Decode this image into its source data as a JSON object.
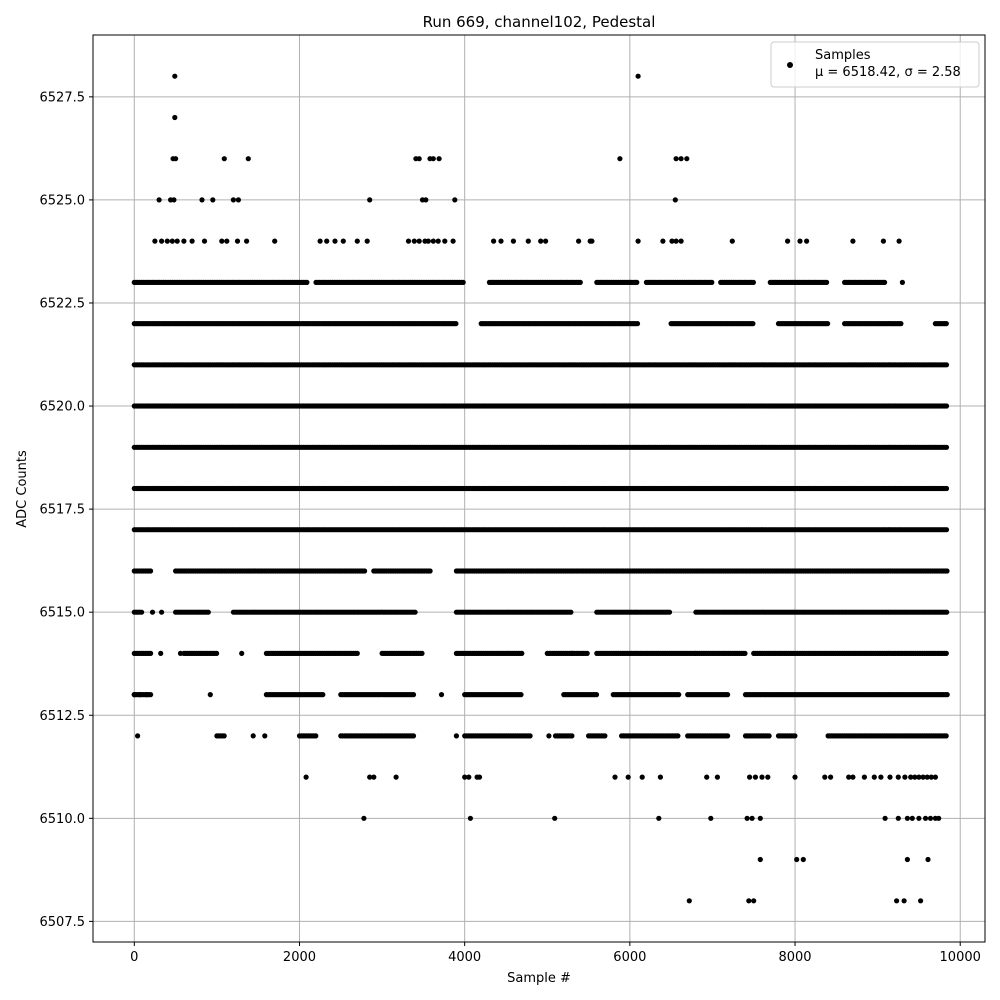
{
  "chart_data": {
    "type": "scatter",
    "title": "Run 669, channel102, Pedestal",
    "xlabel": "Sample #",
    "ylabel": "ADC Counts",
    "xlim": [
      -500,
      10300
    ],
    "ylim": [
      6507.0,
      6529.0
    ],
    "xticks": [
      0,
      2000,
      4000,
      6000,
      8000,
      10000
    ],
    "yticks": [
      6507.5,
      6510.0,
      6512.5,
      6515.0,
      6517.5,
      6520.0,
      6522.5,
      6525.0,
      6527.5
    ],
    "ytick_labels": [
      "6507.5",
      "6510.0",
      "6512.5",
      "6515.0",
      "6517.5",
      "6520.0",
      "6522.5",
      "6525.0",
      "6527.5"
    ],
    "grid": true,
    "legend_position": "top-right",
    "marker_color": "#000000",
    "series": [
      {
        "name": "Samples",
        "stats_label": "μ = 6518.42, σ = 2.58",
        "levels": [
          {
            "y": 6517,
            "ranges": [
              [
                0,
                9850
              ]
            ]
          },
          {
            "y": 6518,
            "ranges": [
              [
                0,
                9850
              ]
            ]
          },
          {
            "y": 6519,
            "ranges": [
              [
                0,
                9850
              ]
            ]
          },
          {
            "y": 6520,
            "ranges": [
              [
                0,
                9850
              ]
            ]
          },
          {
            "y": 6521,
            "ranges": [
              [
                0,
                9850
              ]
            ]
          },
          {
            "y": 6522,
            "ranges": [
              [
                0,
                3900
              ],
              [
                4200,
                6100
              ],
              [
                6500,
                7500
              ],
              [
                7800,
                8400
              ],
              [
                8600,
                9300
              ],
              [
                9700,
                9850
              ]
            ]
          },
          {
            "y": 6523,
            "ranges": [
              [
                0,
                2100
              ],
              [
                2200,
                4000
              ],
              [
                4300,
                5400
              ],
              [
                5600,
                6100
              ],
              [
                6200,
                7000
              ],
              [
                7100,
                7500
              ],
              [
                7700,
                8400
              ],
              [
                8600,
                9100
              ]
            ]
          },
          {
            "y": 6516,
            "ranges": [
              [
                0,
                200
              ],
              [
                500,
                2800
              ],
              [
                2900,
                3600
              ],
              [
                3900,
                9850
              ]
            ]
          },
          {
            "y": 6515,
            "ranges": [
              [
                0,
                100
              ],
              [
                500,
                900
              ],
              [
                1200,
                3400
              ],
              [
                3900,
                5300
              ],
              [
                5600,
                6500
              ],
              [
                6800,
                9850
              ]
            ]
          },
          {
            "y": 6514,
            "ranges": [
              [
                0,
                200
              ],
              [
                600,
                1000
              ],
              [
                1600,
                2700
              ],
              [
                3000,
                3500
              ],
              [
                3900,
                4700
              ],
              [
                5000,
                5500
              ],
              [
                5600,
                6800
              ],
              [
                6800,
                7400
              ],
              [
                7500,
                9850
              ]
            ]
          },
          {
            "y": 6513,
            "ranges": [
              [
                0,
                200
              ],
              [
                1600,
                2300
              ],
              [
                2500,
                3400
              ],
              [
                4000,
                4700
              ],
              [
                5200,
                5600
              ],
              [
                5800,
                6600
              ],
              [
                6700,
                7200
              ],
              [
                7400,
                9850
              ]
            ]
          },
          {
            "y": 6512,
            "ranges": [
              [
                1000,
                1100
              ],
              [
                2000,
                2200
              ],
              [
                2500,
                3400
              ],
              [
                4000,
                4800
              ],
              [
                5100,
                5300
              ],
              [
                5500,
                5700
              ],
              [
                5900,
                6600
              ],
              [
                6700,
                7200
              ],
              [
                7400,
                7700
              ],
              [
                7800,
                8000
              ],
              [
                8400,
                9850
              ]
            ]
          }
        ],
        "points": [
          [
            40,
            6512
          ],
          [
            1440,
            6512
          ],
          [
            1580,
            6512
          ],
          [
            3900,
            6512
          ],
          [
            5020,
            6512
          ],
          [
            0,
            6513
          ],
          [
            70,
            6513
          ],
          [
            150,
            6513
          ],
          [
            920,
            6513
          ],
          [
            3720,
            6513
          ],
          [
            320,
            6514
          ],
          [
            560,
            6514
          ],
          [
            1300,
            6514
          ],
          [
            5300,
            6514
          ],
          [
            220,
            6515
          ],
          [
            330,
            6515
          ],
          [
            250,
            6524
          ],
          [
            330,
            6524
          ],
          [
            400,
            6524
          ],
          [
            460,
            6524
          ],
          [
            520,
            6524
          ],
          [
            600,
            6524
          ],
          [
            700,
            6524
          ],
          [
            850,
            6524
          ],
          [
            1060,
            6524
          ],
          [
            1120,
            6524
          ],
          [
            1250,
            6524
          ],
          [
            1360,
            6524
          ],
          [
            1700,
            6524
          ],
          [
            2250,
            6524
          ],
          [
            2330,
            6524
          ],
          [
            2430,
            6524
          ],
          [
            2530,
            6524
          ],
          [
            2700,
            6524
          ],
          [
            2820,
            6524
          ],
          [
            3320,
            6524
          ],
          [
            3390,
            6524
          ],
          [
            3450,
            6524
          ],
          [
            3520,
            6524
          ],
          [
            3560,
            6524
          ],
          [
            3620,
            6524
          ],
          [
            3680,
            6524
          ],
          [
            3760,
            6524
          ],
          [
            3860,
            6524
          ],
          [
            4350,
            6524
          ],
          [
            4440,
            6524
          ],
          [
            4590,
            6524
          ],
          [
            4770,
            6524
          ],
          [
            4920,
            6524
          ],
          [
            4980,
            6524
          ],
          [
            5380,
            6524
          ],
          [
            5520,
            6524
          ],
          [
            5540,
            6524
          ],
          [
            6100,
            6524
          ],
          [
            6400,
            6524
          ],
          [
            6510,
            6524
          ],
          [
            6560,
            6524
          ],
          [
            6620,
            6524
          ],
          [
            7240,
            6524
          ],
          [
            7910,
            6524
          ],
          [
            8060,
            6524
          ],
          [
            8140,
            6524
          ],
          [
            8700,
            6524
          ],
          [
            9070,
            6524
          ],
          [
            9260,
            6524
          ],
          [
            300,
            6525
          ],
          [
            440,
            6525
          ],
          [
            480,
            6525
          ],
          [
            820,
            6525
          ],
          [
            950,
            6525
          ],
          [
            1200,
            6525
          ],
          [
            1260,
            6525
          ],
          [
            2850,
            6525
          ],
          [
            3490,
            6525
          ],
          [
            3530,
            6525
          ],
          [
            3880,
            6525
          ],
          [
            6550,
            6525
          ],
          [
            470,
            6526
          ],
          [
            500,
            6526
          ],
          [
            1090,
            6526
          ],
          [
            1380,
            6526
          ],
          [
            3410,
            6526
          ],
          [
            3450,
            6526
          ],
          [
            3580,
            6526
          ],
          [
            3620,
            6526
          ],
          [
            3690,
            6526
          ],
          [
            5880,
            6526
          ],
          [
            6560,
            6526
          ],
          [
            6620,
            6526
          ],
          [
            6690,
            6526
          ],
          [
            490,
            6527
          ],
          [
            490,
            6528
          ],
          [
            6100,
            6528
          ],
          [
            9300,
            6523
          ],
          [
            2080,
            6511
          ],
          [
            2850,
            6511
          ],
          [
            2900,
            6511
          ],
          [
            3170,
            6511
          ],
          [
            4000,
            6511
          ],
          [
            4050,
            6511
          ],
          [
            4150,
            6511
          ],
          [
            4180,
            6511
          ],
          [
            5820,
            6511
          ],
          [
            5980,
            6511
          ],
          [
            6150,
            6511
          ],
          [
            6370,
            6511
          ],
          [
            6930,
            6511
          ],
          [
            7060,
            6511
          ],
          [
            7450,
            6511
          ],
          [
            7520,
            6511
          ],
          [
            7600,
            6511
          ],
          [
            7670,
            6511
          ],
          [
            8000,
            6511
          ],
          [
            8360,
            6511
          ],
          [
            8430,
            6511
          ],
          [
            8650,
            6511
          ],
          [
            8700,
            6511
          ],
          [
            8840,
            6511
          ],
          [
            8960,
            6511
          ],
          [
            9040,
            6511
          ],
          [
            9150,
            6511
          ],
          [
            9250,
            6511
          ],
          [
            9330,
            6511
          ],
          [
            9400,
            6511
          ],
          [
            9450,
            6511
          ],
          [
            9500,
            6511
          ],
          [
            9550,
            6511
          ],
          [
            9600,
            6511
          ],
          [
            9650,
            6511
          ],
          [
            9700,
            6511
          ],
          [
            2780,
            6510
          ],
          [
            4070,
            6510
          ],
          [
            5090,
            6510
          ],
          [
            6350,
            6510
          ],
          [
            6980,
            6510
          ],
          [
            7420,
            6510
          ],
          [
            7480,
            6510
          ],
          [
            7580,
            6510
          ],
          [
            9090,
            6510
          ],
          [
            9250,
            6510
          ],
          [
            9360,
            6510
          ],
          [
            9420,
            6510
          ],
          [
            9500,
            6510
          ],
          [
            9580,
            6510
          ],
          [
            9640,
            6510
          ],
          [
            9700,
            6510
          ],
          [
            9740,
            6510
          ],
          [
            7580,
            6509
          ],
          [
            8020,
            6509
          ],
          [
            8100,
            6509
          ],
          [
            9360,
            6509
          ],
          [
            9610,
            6509
          ],
          [
            6720,
            6508
          ],
          [
            7440,
            6508
          ],
          [
            7500,
            6508
          ],
          [
            9230,
            6508
          ],
          [
            9320,
            6508
          ],
          [
            9520,
            6508
          ]
        ]
      }
    ]
  }
}
